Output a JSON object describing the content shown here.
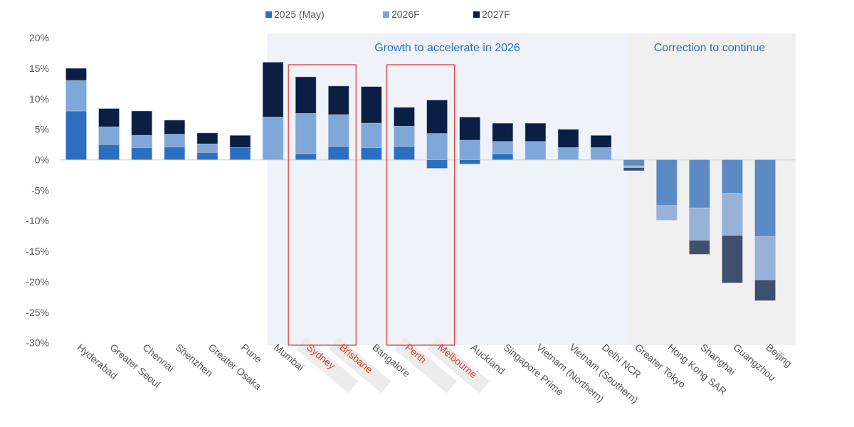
{
  "chart_data": {
    "type": "bar",
    "stacked": true,
    "title": "",
    "xlabel": "",
    "ylabel": "",
    "ylim": [
      -30,
      20
    ],
    "yticks": [
      20,
      15,
      10,
      5,
      0,
      -5,
      -10,
      -15,
      -20,
      -25,
      -30
    ],
    "ytick_labels": [
      "20%",
      "15%",
      "10%",
      "5%",
      "0%",
      "-5%",
      "-10%",
      "-15%",
      "-20%",
      "-25%",
      "-30%"
    ],
    "legend_position": "top-center",
    "categories": [
      "Hyderabad",
      "Greater Seoul",
      "Chennai",
      "Shenzhen",
      "Greater Osaka",
      "Pune",
      "Mumbai",
      "Sydney",
      "Brisbane",
      "Bangalore",
      "Perth",
      "Melbourne",
      "Auckland",
      "Singapore Prime",
      "Vietnam (Northern)",
      "Vietnam (Southern)",
      "Delhi NCR",
      "Greater Tokyo",
      "Hong Kong SAR",
      "Shanghai",
      "Guangzhou",
      "Beijing"
    ],
    "highlighted_categories": [
      "Sydney",
      "Brisbane",
      "Perth",
      "Melbourne"
    ],
    "series": [
      {
        "name": "2025 (May)",
        "color": "#2c6fbf",
        "values": [
          8.0,
          2.5,
          2.0,
          2.1,
          1.2,
          2.0,
          0.0,
          1.0,
          2.2,
          2.0,
          2.2,
          -1.4,
          -0.7,
          1.0,
          0.0,
          0.0,
          0.0,
          -1.0,
          -7.5,
          -7.9,
          -5.5,
          -12.6
        ]
      },
      {
        "name": "2026F",
        "color": "#7fa7d8",
        "values": [
          5.0,
          2.9,
          2.0,
          2.1,
          1.4,
          0.0,
          7.0,
          6.6,
          5.2,
          4.0,
          3.3,
          4.3,
          3.2,
          2.0,
          3.0,
          2.0,
          2.0,
          -0.3,
          -2.4,
          -5.3,
          -6.9,
          -7.1
        ]
      },
      {
        "name": "2027F",
        "color": "#0b1f45",
        "values": [
          2.0,
          3.0,
          4.0,
          2.3,
          1.8,
          2.0,
          9.0,
          6.0,
          4.7,
          6.0,
          3.1,
          5.5,
          3.8,
          3.0,
          3.0,
          3.0,
          2.0,
          -0.5,
          0.0,
          -2.3,
          -7.8,
          -3.4
        ]
      }
    ],
    "annotations": [
      {
        "text": "Growth to accelerate in 2026",
        "span": [
          "Mumbai",
          "Delhi NCR"
        ],
        "shade": "#eff3f9"
      },
      {
        "text": "Correction to continue",
        "span": [
          "Greater Tokyo",
          "Beijing"
        ],
        "shade": "#f0f0f0"
      }
    ],
    "highlight_boxes": [
      [
        "Sydney",
        "Brisbane"
      ],
      [
        "Perth",
        "Melbourne"
      ]
    ],
    "highlight_color": "#e0413b",
    "correction_series_colors": [
      "#5b8ac4",
      "#97b2d6",
      "#3f506c"
    ]
  }
}
